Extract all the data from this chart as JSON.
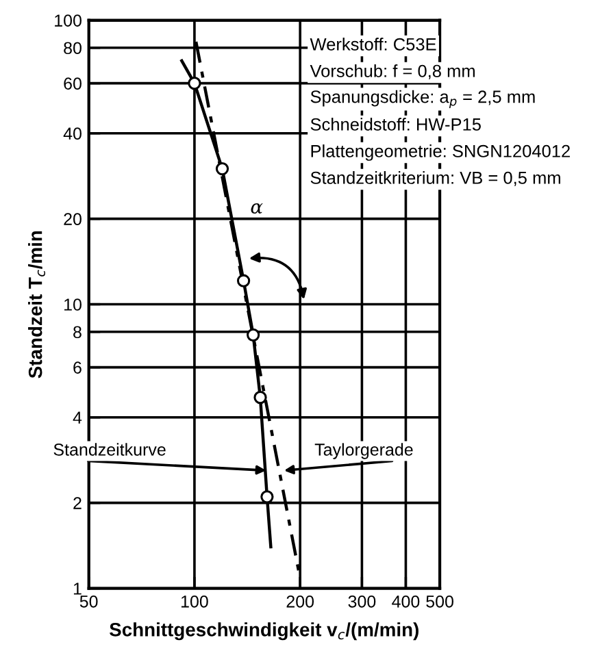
{
  "chart_data": {
    "type": "line",
    "xlabel": "Schnittgeschwindigkeit v$_{c}$/(m/min)",
    "ylabel": "Standzeit T$_{c}$/min",
    "log": "xy",
    "xlim": [
      50,
      500
    ],
    "ylim": [
      1,
      100
    ],
    "xticks": [
      50,
      100,
      200,
      300,
      400,
      500
    ],
    "yticks": [
      1,
      2,
      4,
      6,
      8,
      10,
      20,
      40,
      60,
      80,
      100
    ],
    "grid": true,
    "series": [
      {
        "color": "#000000",
        "line_style": "solid",
        "marker": "none",
        "x": [
          92,
          100,
          120,
          138,
          147,
          154,
          161,
          165
        ],
        "values": [
          72,
          60,
          30,
          12.1,
          7.8,
          4.7,
          2.1,
          1.4
        ]
      },
      {
        "type": "line",
        "color": "#000000",
        "line_style": "dashed",
        "marker": "none",
        "x": [
          101,
          199
        ],
        "values": [
          84,
          1.12
        ]
      },
      {
        "type": "scatter",
        "color": "#000000",
        "marker": "circle",
        "x": [
          100,
          120,
          138,
          147,
          154,
          161
        ],
        "values": [
          60,
          30,
          12.1,
          7.8,
          4.7,
          2.1
        ]
      }
    ],
    "annotations": [
      "Werkstoff: C53E",
      "Vorschub: f = 0,8 mm",
      "Spanungsdicke: a$_{p}$ = 2,5 mm",
      "Schneidstoff: HW-P15",
      "Plattengeometrie: SNGN1204012",
      "Standzeitkriterium: VB = 0,5 mm",
      {
        "text": "Standzeitkurve",
        "x": 160,
        "y": 2.6
      },
      {
        "text": "Taylorgerade",
        "x": 180,
        "y": 2.6
      },
      "α"
    ]
  }
}
